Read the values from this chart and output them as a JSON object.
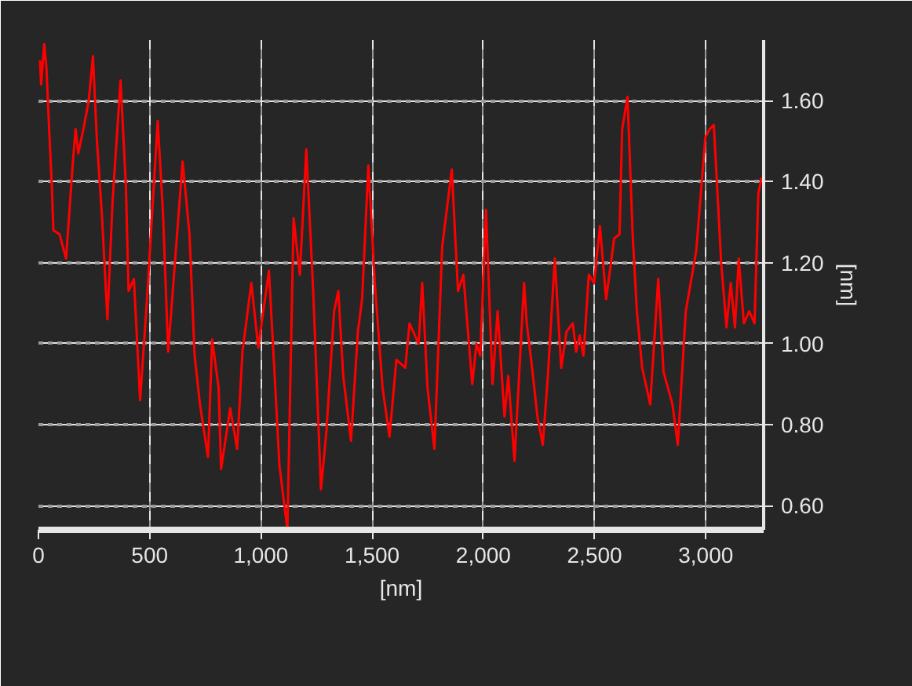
{
  "chart_data": {
    "type": "line",
    "xlabel": "[nm]",
    "ylabel": "[nm]",
    "xlim": [
      0,
      3260
    ],
    "ylim": [
      0.54,
      1.75
    ],
    "xticks": [
      0,
      500,
      {
        "value": 1000,
        "label": "1,000"
      },
      {
        "value": 1500,
        "label": "1,500"
      },
      {
        "value": 2000,
        "label": "2,000"
      },
      {
        "value": 2500,
        "label": "2,500"
      },
      {
        "value": 3000,
        "label": "3,000"
      }
    ],
    "yticks": [
      {
        "value": 0.6,
        "label": "0.60"
      },
      {
        "value": 0.8,
        "label": "0.80"
      },
      {
        "value": 1.0,
        "label": "1.00"
      },
      {
        "value": 1.2,
        "label": "1.20"
      },
      {
        "value": 1.4,
        "label": "1.40"
      },
      {
        "value": 1.6,
        "label": "1.60"
      }
    ],
    "grid": true,
    "line_style": "solid",
    "marker": "none",
    "series": [
      {
        "color": "#ff0000",
        "x": [
          7,
          12,
          26,
          36,
          48,
          60,
          67,
          95,
          124,
          155,
          167,
          179,
          202,
          226,
          245,
          262,
          286,
          310,
          333,
          369,
          393,
          405,
          429,
          457,
          488,
          512,
          536,
          560,
          583,
          619,
          648,
          679,
          702,
          726,
          762,
          781,
          810,
          821,
          862,
          893,
          917,
          957,
          988,
          1036,
          1060,
          1083,
          1119,
          1147,
          1175,
          1204,
          1235,
          1270,
          1294,
          1329,
          1348,
          1370,
          1405,
          1436,
          1455,
          1483,
          1512,
          1547,
          1578,
          1609,
          1649,
          1668,
          1709,
          1725,
          1749,
          1780,
          1815,
          1858,
          1886,
          1910,
          1950,
          1969,
          1986,
          2012,
          2041,
          2064,
          2095,
          2112,
          2140,
          2183,
          2195,
          2219,
          2243,
          2267,
          2290,
          2321,
          2350,
          2374,
          2402,
          2417,
          2433,
          2450,
          2474,
          2498,
          2524,
          2552,
          2588,
          2612,
          2624,
          2648,
          2671,
          2690,
          2714,
          2750,
          2786,
          2810,
          2850,
          2874,
          2910,
          2957,
          2998,
          3017,
          3036,
          3069,
          3093,
          3112,
          3131,
          3148,
          3171,
          3195,
          3219,
          3236,
          3250
        ],
        "values": [
          1.7,
          1.64,
          1.74,
          1.68,
          1.53,
          1.39,
          1.28,
          1.27,
          1.21,
          1.45,
          1.53,
          1.47,
          1.53,
          1.6,
          1.71,
          1.51,
          1.31,
          1.06,
          1.35,
          1.65,
          1.39,
          1.13,
          1.16,
          0.86,
          1.11,
          1.33,
          1.55,
          1.32,
          0.98,
          1.24,
          1.45,
          1.27,
          0.97,
          0.85,
          0.72,
          1.01,
          0.89,
          0.69,
          0.84,
          0.74,
          0.98,
          1.15,
          0.99,
          1.18,
          0.94,
          0.7,
          0.54,
          1.31,
          1.17,
          1.48,
          1.13,
          0.64,
          0.78,
          1.08,
          1.13,
          0.92,
          0.76,
          1.03,
          1.11,
          1.44,
          1.15,
          0.89,
          0.77,
          0.96,
          0.94,
          1.05,
          1.0,
          1.15,
          0.89,
          0.74,
          1.24,
          1.43,
          1.13,
          1.17,
          0.9,
          1.0,
          0.97,
          1.33,
          0.9,
          1.08,
          0.82,
          0.92,
          0.71,
          1.15,
          1.05,
          0.94,
          0.82,
          0.75,
          0.92,
          1.21,
          0.94,
          1.03,
          1.05,
          0.98,
          1.02,
          0.97,
          1.17,
          1.15,
          1.29,
          1.11,
          1.26,
          1.27,
          1.53,
          1.61,
          1.27,
          1.08,
          0.94,
          0.85,
          1.16,
          0.93,
          0.85,
          0.75,
          1.08,
          1.23,
          1.51,
          1.53,
          1.54,
          1.2,
          1.04,
          1.15,
          1.04,
          1.21,
          1.05,
          1.08,
          1.05,
          1.37,
          1.41
        ]
      }
    ]
  }
}
